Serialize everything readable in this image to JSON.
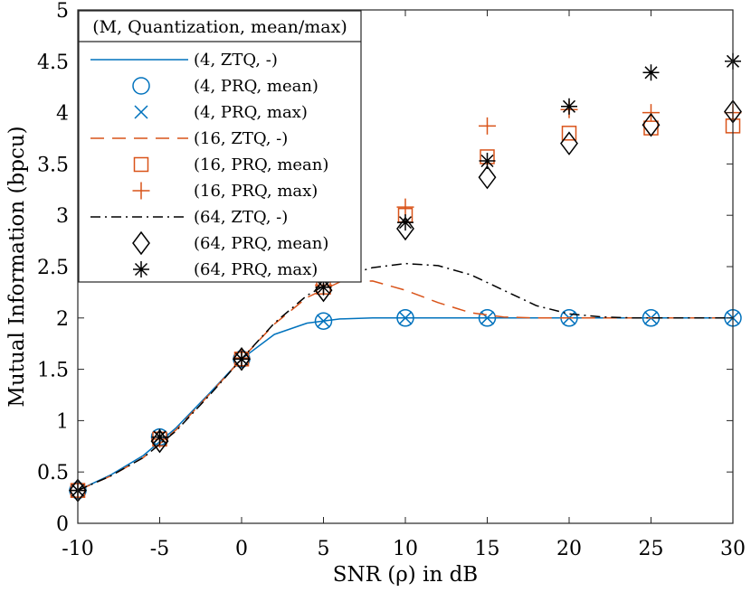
{
  "chart_data": {
    "type": "line",
    "title": "",
    "xlabel": "SNR (ρ) in dB",
    "ylabel": "Mutual Information (bpcu)",
    "xlim": [
      -10,
      30
    ],
    "ylim": [
      0,
      5
    ],
    "xticks": [
      -10,
      -5,
      0,
      5,
      10,
      15,
      20,
      25,
      30
    ],
    "xtick_labels": [
      "-10",
      "-5",
      "0",
      "5",
      "10",
      "15",
      "20",
      "25",
      "30"
    ],
    "yticks": [
      0,
      0.5,
      1,
      1.5,
      2,
      2.5,
      3,
      3.5,
      4,
      4.5,
      5
    ],
    "ytick_labels": [
      "0",
      "0.5",
      "1",
      "1.5",
      "2",
      "2.5",
      "3",
      "3.5",
      "4",
      "4.5",
      "5"
    ],
    "grid": false,
    "legend_title": "(M, Quantization, mean/max)",
    "legend_position": "top-left",
    "series": [
      {
        "name": "(4, ZTQ, -)",
        "style": "solid",
        "marker": "none",
        "color": "#0072BD",
        "x": [
          -10,
          -8,
          -6,
          -4,
          -2,
          0,
          2,
          4,
          6,
          8,
          10,
          15,
          20,
          25,
          30
        ],
        "y": [
          0.32,
          0.47,
          0.66,
          0.93,
          1.26,
          1.6,
          1.84,
          1.95,
          1.99,
          2.0,
          2.0,
          2.0,
          2.0,
          2.0,
          2.0
        ]
      },
      {
        "name": "(4, PRQ, mean)",
        "style": "none",
        "marker": "circle",
        "color": "#0072BD",
        "x": [
          -10,
          -5,
          0,
          5,
          10,
          15,
          20,
          25,
          30
        ],
        "y": [
          0.32,
          0.84,
          1.6,
          1.97,
          2.0,
          2.0,
          2.0,
          2.0,
          2.0
        ]
      },
      {
        "name": "(4, PRQ, max)",
        "style": "none",
        "marker": "x",
        "color": "#0072BD",
        "x": [
          -10,
          -5,
          0,
          5,
          10,
          15,
          20,
          25,
          30
        ],
        "y": [
          0.32,
          0.84,
          1.6,
          1.97,
          2.0,
          2.0,
          2.0,
          2.0,
          2.0
        ]
      },
      {
        "name": "(16, ZTQ, -)",
        "style": "dashed",
        "marker": "none",
        "color": "#D95319",
        "x": [
          -10,
          -8,
          -6,
          -4,
          -2,
          0,
          2,
          4,
          6,
          8,
          10,
          12,
          14,
          16,
          18,
          20,
          25,
          30
        ],
        "y": [
          0.32,
          0.46,
          0.64,
          0.91,
          1.25,
          1.6,
          1.94,
          2.2,
          2.35,
          2.36,
          2.27,
          2.15,
          2.05,
          2.01,
          2.0,
          2.0,
          2.0,
          2.0
        ]
      },
      {
        "name": "(16, PRQ, mean)",
        "style": "none",
        "marker": "square",
        "color": "#D95319",
        "x": [
          -10,
          -5,
          0,
          5,
          10,
          15,
          20,
          25,
          30
        ],
        "y": [
          0.32,
          0.82,
          1.6,
          2.3,
          3.0,
          3.57,
          3.8,
          3.85,
          3.87
        ]
      },
      {
        "name": "(16, PRQ, max)",
        "style": "none",
        "marker": "plus",
        "color": "#D95319",
        "x": [
          -10,
          -5,
          0,
          5,
          10,
          15,
          20,
          25,
          30
        ],
        "y": [
          0.32,
          0.82,
          1.61,
          2.32,
          3.08,
          3.87,
          4.03,
          4.0,
          4.0
        ]
      },
      {
        "name": "(64, ZTQ, -)",
        "style": "dashdot",
        "marker": "none",
        "color": "#000000",
        "x": [
          -10,
          -8,
          -6,
          -4,
          -2,
          0,
          2,
          4,
          6,
          8,
          10,
          12,
          14,
          16,
          18,
          20,
          22,
          24,
          26,
          30
        ],
        "y": [
          0.32,
          0.46,
          0.64,
          0.9,
          1.24,
          1.6,
          1.95,
          2.22,
          2.4,
          2.49,
          2.53,
          2.51,
          2.42,
          2.27,
          2.12,
          2.04,
          2.01,
          2.0,
          2.0,
          2.0
        ]
      },
      {
        "name": "(64, PRQ, mean)",
        "style": "none",
        "marker": "diamond",
        "color": "#000000",
        "x": [
          -10,
          -5,
          0,
          5,
          10,
          15,
          20,
          25,
          30
        ],
        "y": [
          0.32,
          0.8,
          1.6,
          2.27,
          2.87,
          3.37,
          3.7,
          3.88,
          4.01
        ]
      },
      {
        "name": "(64, PRQ, max)",
        "style": "none",
        "marker": "asterisk",
        "color": "#000000",
        "x": [
          -10,
          -5,
          0,
          5,
          10,
          15,
          20,
          25,
          30
        ],
        "y": [
          0.32,
          0.84,
          1.6,
          2.3,
          2.93,
          3.53,
          4.06,
          4.39,
          4.5
        ]
      }
    ]
  }
}
